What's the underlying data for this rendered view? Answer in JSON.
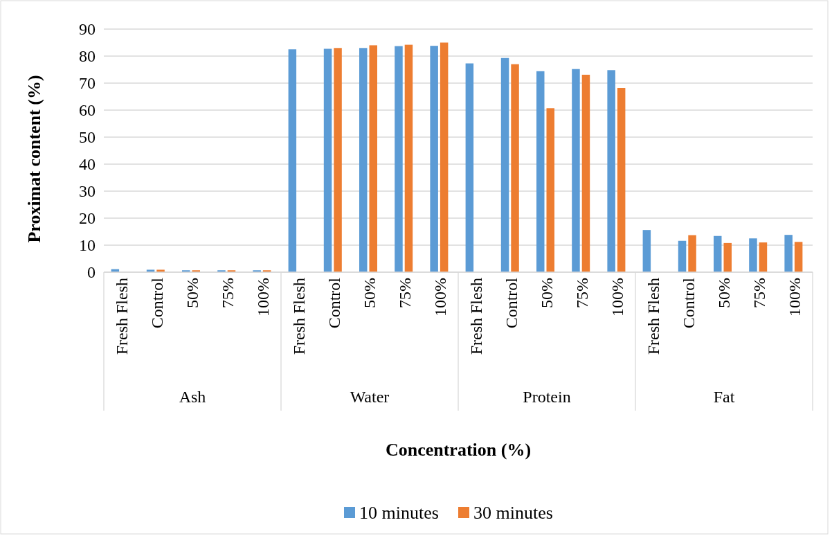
{
  "chart_data": {
    "type": "bar",
    "xlabel": "Concentration (%)",
    "ylabel": "Proximat content (%)",
    "categories": [
      "Fresh Flesh",
      "Control",
      "50%",
      "75%",
      "100%",
      "Fresh Flesh",
      "Control",
      "50%",
      "75%",
      "100%",
      "Fresh Flesh",
      "Control",
      "50%",
      "75%",
      "100%",
      "Fresh Flesh",
      "Control",
      "50%",
      "75%",
      "100%"
    ],
    "annotations": [
      "Ash",
      "Water",
      "Protein",
      "Fat"
    ],
    "series": [
      {
        "name": "10 minutes",
        "color": "#5b9bd5",
        "values": [
          1.1,
          0.9,
          0.7,
          0.7,
          0.7,
          82.5,
          82.7,
          83.0,
          83.7,
          83.8,
          77.3,
          79.3,
          74.4,
          75.2,
          74.8,
          15.6,
          11.6,
          13.4,
          12.5,
          13.8
        ]
      },
      {
        "name": "30 minutes",
        "color": "#ed7d31",
        "values": [
          null,
          0.9,
          0.7,
          0.7,
          0.7,
          null,
          83.0,
          84.0,
          84.2,
          85.0,
          null,
          77.0,
          60.7,
          73.1,
          68.2,
          null,
          13.7,
          10.8,
          11.0,
          11.2
        ]
      }
    ],
    "ylim": [
      0,
      90
    ],
    "yticks": [
      0,
      10,
      20,
      30,
      40,
      50,
      60,
      70,
      80,
      90
    ],
    "grid": "y",
    "legend": "bottom"
  }
}
